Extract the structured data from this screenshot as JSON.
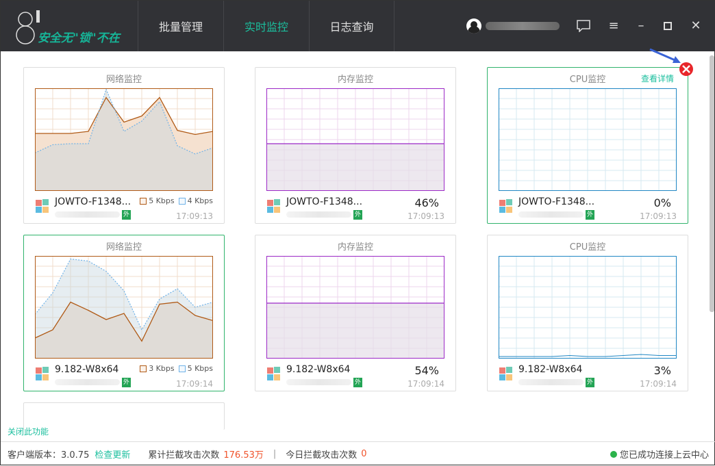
{
  "header": {
    "logo_text": "安全无\"锁\"不在",
    "nav": [
      {
        "label": "批量管理",
        "active": false
      },
      {
        "label": "实时监控",
        "active": true
      },
      {
        "label": "日志查询",
        "active": false
      }
    ],
    "icons": [
      "chat-icon",
      "menu-icon",
      "minimize-icon",
      "maximize-icon",
      "close-icon"
    ]
  },
  "accent": "#1bbf9e",
  "cards": [
    {
      "type": "net",
      "title": "网络监控",
      "host": "JOWTO-F1348...",
      "badge": "外",
      "time": "17:09:13",
      "legend": [
        "5 Kbps",
        "4 Kbps"
      ],
      "series": [
        [
          56,
          56,
          56,
          58,
          91,
          67,
          73,
          91,
          59,
          55,
          58
        ],
        [
          37,
          45,
          46,
          46,
          99,
          58,
          68,
          87,
          44,
          36,
          42
        ]
      ],
      "selected": false
    },
    {
      "type": "mem",
      "title": "内存监控",
      "host": "JOWTO-F1348...",
      "badge": "外",
      "time": "17:09:13",
      "percent": "46%",
      "value": 46,
      "selected": false
    },
    {
      "type": "cpu",
      "title": "CPU监控",
      "detail": "查看详情",
      "host": "JOWTO-F1348...",
      "badge": "外",
      "time": "17:09:13",
      "percent": "0%",
      "value": 0,
      "selected": true
    },
    {
      "type": "net",
      "title": "网络监控",
      "host": "9.182-W8x64",
      "badge": "外",
      "time": "17:09:14",
      "legend": [
        "3 Kbps",
        "5 Kbps"
      ],
      "series": [
        [
          20,
          28,
          55,
          47,
          38,
          44,
          17,
          53,
          55,
          42,
          37
        ],
        [
          43,
          64,
          97,
          95,
          85,
          66,
          28,
          58,
          68,
          50,
          55
        ]
      ],
      "selected": true
    },
    {
      "type": "mem",
      "title": "内存监控",
      "host": "9.182-W8x64",
      "badge": "外",
      "time": "17:09:14",
      "percent": "54%",
      "value": 54,
      "selected": false
    },
    {
      "type": "cpu",
      "title": "CPU监控",
      "host": "9.182-W8x64",
      "badge": "外",
      "time": "17:09:14",
      "percent": "3%",
      "value": 3,
      "cpu_series": [
        2,
        2,
        2,
        2,
        3,
        2,
        2,
        3,
        4,
        3,
        3
      ],
      "selected": false
    }
  ],
  "close_feature": "关闭此功能",
  "status": {
    "version_label": "客户端版本：3.0.75",
    "check_update": "检查更新",
    "total_label": "累计拦截攻击次数",
    "total_value": "176.53万",
    "sep": "|",
    "today_label": "今日拦截攻击次数",
    "today_value": "0",
    "connection": "您已成功连接上云中心"
  }
}
